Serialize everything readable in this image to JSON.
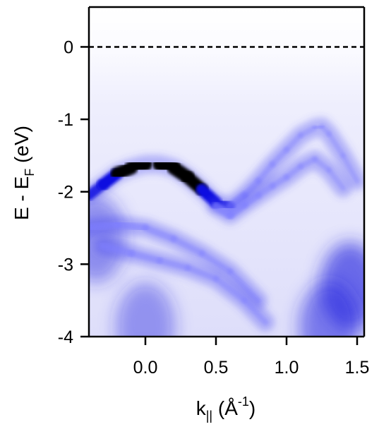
{
  "chart_data": {
    "type": "heatmap",
    "title": "",
    "xlabel": {
      "main": "k",
      "sub": "||",
      "open": " (Å",
      "sup": "-1",
      "close": ")"
    },
    "ylabel": {
      "main": "E - E",
      "sub": "F",
      "rest": " (eV)"
    },
    "xlim": [
      -0.4,
      1.55
    ],
    "ylim": [
      -4.0,
      0.55
    ],
    "x_ticks": [
      {
        "value": 0.0,
        "label": "0.0"
      },
      {
        "value": 0.5,
        "label": "0.5"
      },
      {
        "value": 1.0,
        "label": "1.0"
      },
      {
        "value": 1.5,
        "label": "1.5"
      }
    ],
    "y_ticks": [
      {
        "value": 0,
        "label": "0"
      },
      {
        "value": -1,
        "label": "-1"
      },
      {
        "value": -2,
        "label": "-2"
      },
      {
        "value": -3,
        "label": "-3"
      },
      {
        "value": -4,
        "label": "-4"
      }
    ],
    "fermi_level": {
      "value": 0,
      "style": "dashed",
      "color": "#000000"
    },
    "colormap": [
      "#ffffff",
      "#7f7fff",
      "#1010e0",
      "#000000"
    ],
    "grid": false,
    "bands": [
      {
        "name": "main-band",
        "x": [
          -0.4,
          -0.3,
          -0.2,
          -0.1,
          0.0,
          0.1,
          0.2,
          0.3,
          0.4,
          0.5,
          0.6,
          0.7,
          0.8,
          0.9,
          1.0,
          1.1,
          1.2,
          1.25,
          1.3,
          1.4,
          1.5
        ],
        "y": [
          -2.05,
          -1.9,
          -1.75,
          -1.67,
          -1.62,
          -1.62,
          -1.67,
          -1.8,
          -1.97,
          -2.15,
          -2.2,
          -2.05,
          -1.85,
          -1.62,
          -1.42,
          -1.22,
          -1.12,
          -1.1,
          -1.2,
          -1.5,
          -1.85
        ],
        "intensity": [
          0.5,
          0.7,
          0.85,
          0.95,
          1.0,
          1.0,
          0.95,
          0.9,
          0.8,
          0.7,
          0.45,
          0.3,
          0.22,
          0.2,
          0.18,
          0.15,
          0.12,
          0.12,
          0.12,
          0.1,
          0.1
        ]
      },
      {
        "name": "second-band",
        "x": [
          0.5,
          0.6,
          0.7,
          0.8,
          0.9,
          1.0,
          1.1,
          1.2,
          1.3,
          1.4
        ],
        "y": [
          -2.2,
          -2.32,
          -2.18,
          -2.05,
          -1.92,
          -1.8,
          -1.65,
          -1.55,
          -1.7,
          -1.95
        ],
        "intensity": [
          0.45,
          0.4,
          0.3,
          0.25,
          0.22,
          0.2,
          0.18,
          0.15,
          0.12,
          0.1
        ]
      },
      {
        "name": "lower-band",
        "x": [
          -0.4,
          -0.2,
          0.0,
          0.2,
          0.4,
          0.6,
          0.8
        ],
        "y": [
          -2.5,
          -2.45,
          -2.5,
          -2.65,
          -2.85,
          -3.1,
          -3.5
        ],
        "intensity": [
          0.35,
          0.35,
          0.3,
          0.25,
          0.22,
          0.2,
          0.18
        ]
      },
      {
        "name": "deep-band",
        "x": [
          -0.3,
          -0.1,
          0.1,
          0.3,
          0.5,
          0.7,
          0.85
        ],
        "y": [
          -2.75,
          -2.85,
          -2.95,
          -3.05,
          -3.2,
          -3.5,
          -3.8
        ],
        "intensity": [
          0.3,
          0.3,
          0.25,
          0.22,
          0.2,
          0.18,
          0.15
        ]
      }
    ],
    "spots": [
      {
        "name": "spot-gamma-high",
        "x": -0.35,
        "y": -2.65,
        "intensity": 0.4
      },
      {
        "name": "spot-gamma-low",
        "x": 0.0,
        "y": -3.85,
        "intensity": 0.3
      },
      {
        "name": "spot-right-deep",
        "x": 1.45,
        "y": -3.3,
        "intensity": 0.75
      },
      {
        "name": "spot-right-bottom",
        "x": 1.3,
        "y": -3.85,
        "intensity": 0.55
      }
    ]
  }
}
